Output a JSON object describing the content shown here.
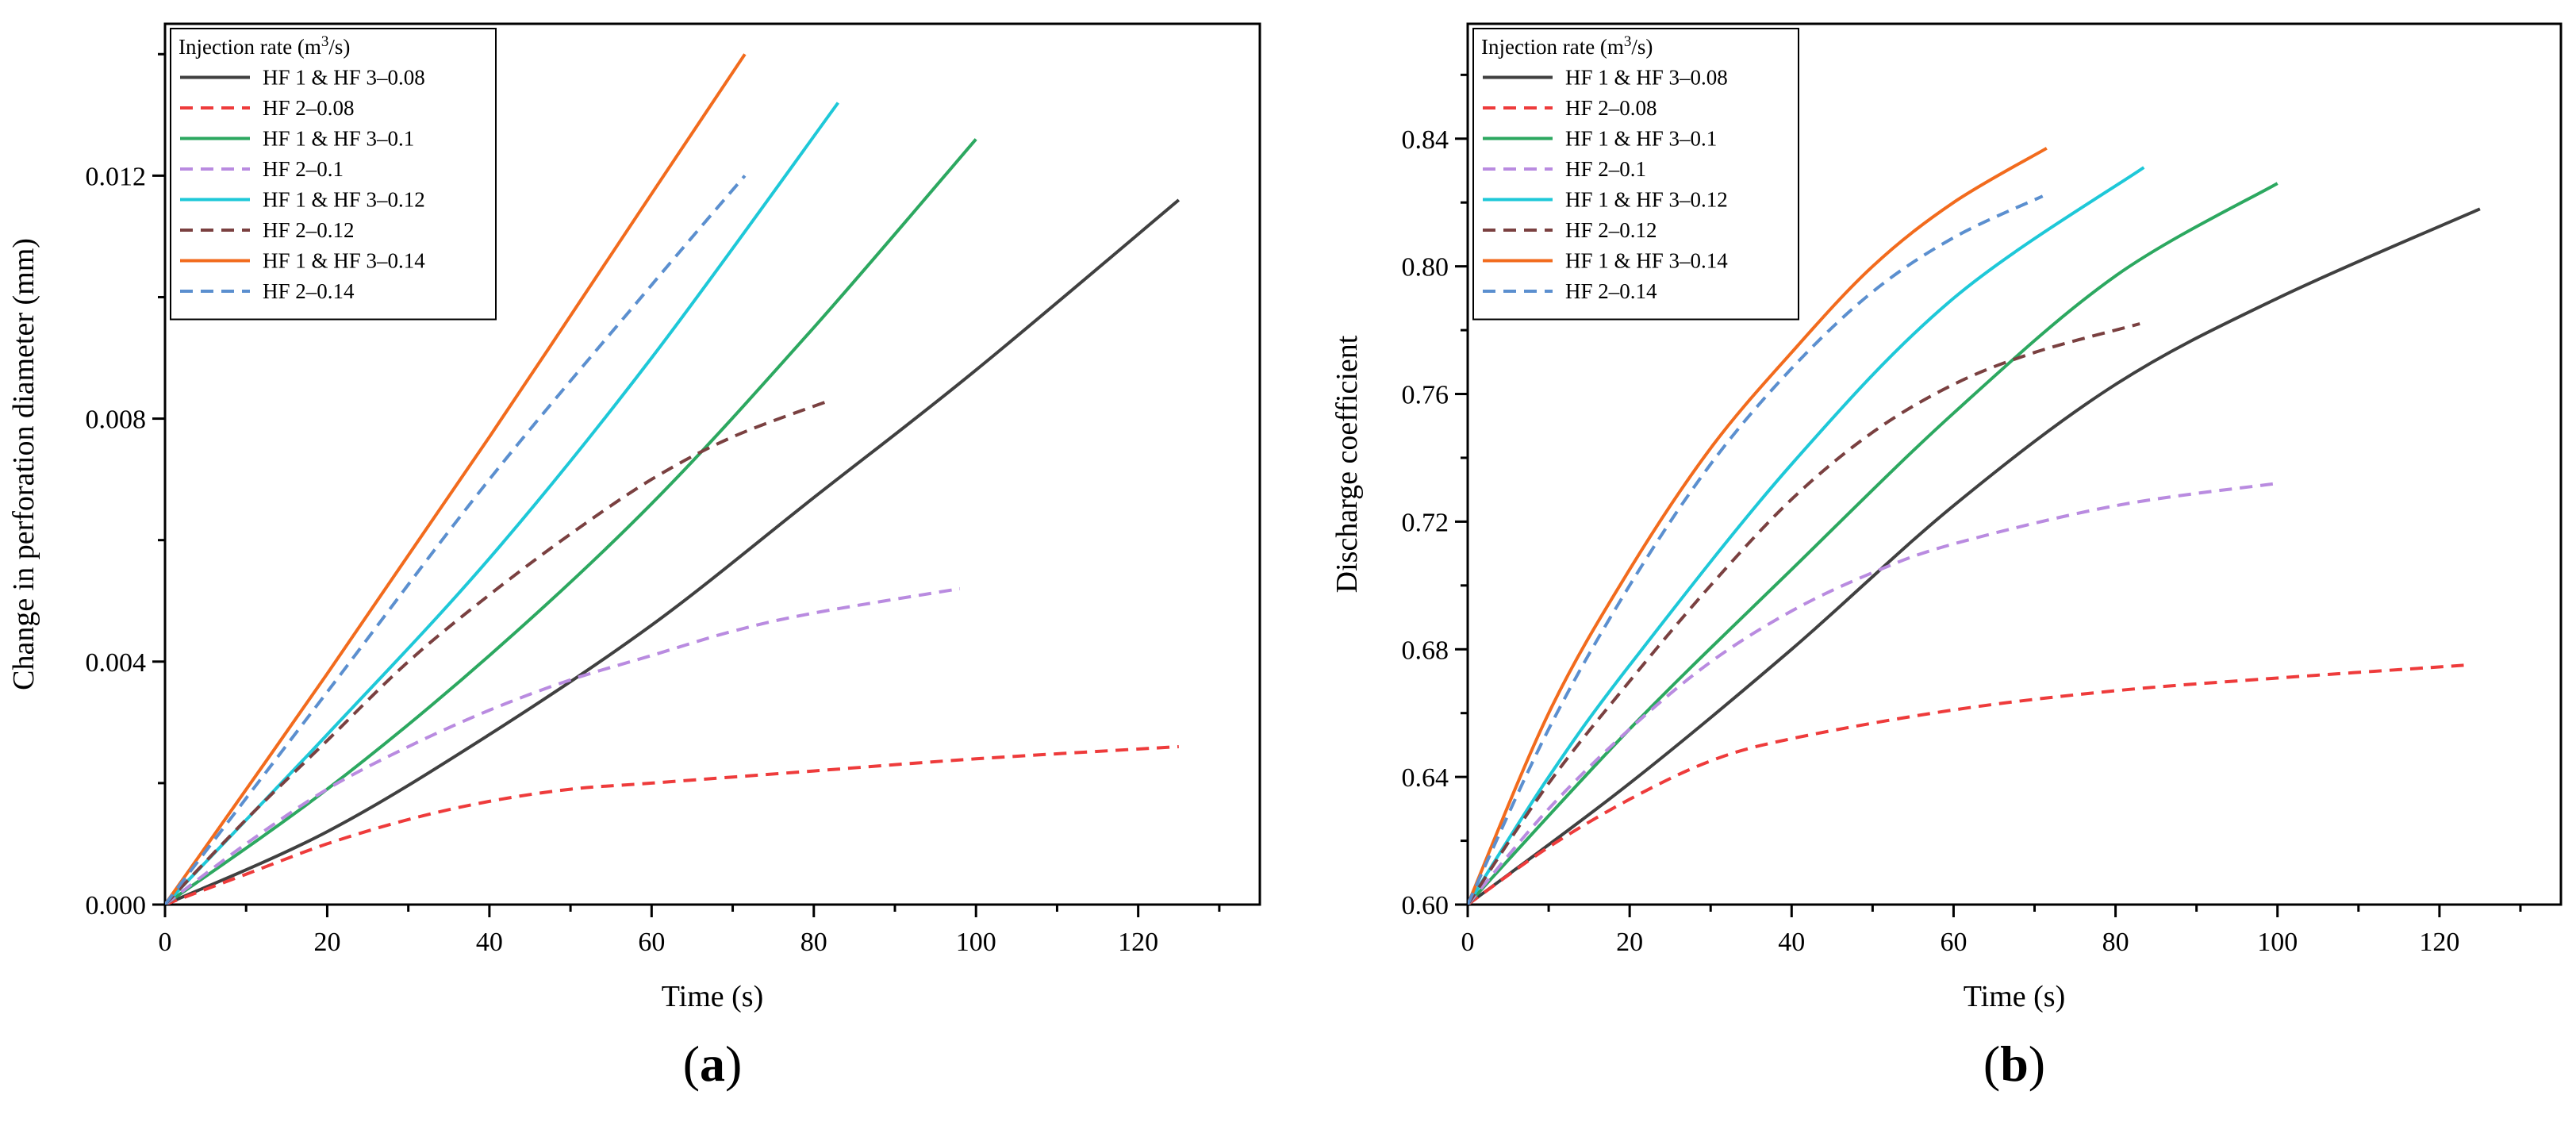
{
  "chart_data": [
    {
      "type": "line",
      "panel_label": "a",
      "xlabel": "Time (s)",
      "ylabel": "Change in perforation diameter (mm)",
      "xlim": [
        0,
        135
      ],
      "ylim": [
        0,
        0.0145
      ],
      "xticks": [
        0,
        20,
        40,
        60,
        80,
        100,
        120
      ],
      "xtick_labels": [
        "0",
        "20",
        "40",
        "60",
        "80",
        "100",
        "120"
      ],
      "yticks": [
        0,
        0.004,
        0.008,
        0.012
      ],
      "ytick_labels": [
        "0.000",
        "0.004",
        "0.008",
        "0.012"
      ],
      "legend_title": "Injection rate (m",
      "legend_title_sup": "3",
      "legend_title_end": "/s)",
      "legend_position": "top-left",
      "series": [
        {
          "name": "HF 1 & HF 3–0.08",
          "color": "#404040",
          "dash": "solid",
          "x": [
            0,
            20,
            40,
            60,
            80,
            100,
            125
          ],
          "y": [
            0,
            0.0012,
            0.0028,
            0.0046,
            0.0067,
            0.0088,
            0.0116
          ]
        },
        {
          "name": "HF 2–0.08",
          "color": "#ee3b3b",
          "dash": "dashed",
          "x": [
            0,
            10,
            20,
            30,
            40,
            50,
            60,
            80,
            100,
            125
          ],
          "y": [
            0,
            0.0005,
            0.001,
            0.0014,
            0.0017,
            0.0019,
            0.002,
            0.0022,
            0.0024,
            0.0026
          ]
        },
        {
          "name": "HF 1 & HF 3–0.1",
          "color": "#2ca860",
          "dash": "solid",
          "x": [
            0,
            20,
            40,
            60,
            80,
            100
          ],
          "y": [
            0,
            0.0019,
            0.0041,
            0.0066,
            0.0095,
            0.0126
          ]
        },
        {
          "name": "HF 2–0.1",
          "color": "#b98be0",
          "dash": "dashed",
          "x": [
            0,
            10,
            20,
            30,
            40,
            50,
            60,
            70,
            80,
            98
          ],
          "y": [
            0,
            0.001,
            0.0019,
            0.0026,
            0.0032,
            0.0037,
            0.0041,
            0.0045,
            0.0048,
            0.0052
          ]
        },
        {
          "name": "HF 1 & HF 3–0.12",
          "color": "#1ec8d8",
          "dash": "solid",
          "x": [
            0,
            20,
            40,
            60,
            83
          ],
          "y": [
            0,
            0.0028,
            0.0057,
            0.009,
            0.0132
          ]
        },
        {
          "name": "HF 2–0.12",
          "color": "#7a4040",
          "dash": "dashed",
          "x": [
            0,
            10,
            20,
            30,
            40,
            50,
            60,
            70,
            82
          ],
          "y": [
            0,
            0.0014,
            0.0027,
            0.004,
            0.0051,
            0.0061,
            0.007,
            0.0077,
            0.0083
          ]
        },
        {
          "name": "HF 1 & HF 3–0.14",
          "color": "#f26b1d",
          "dash": "solid",
          "x": [
            0,
            20,
            40,
            60,
            71.5
          ],
          "y": [
            0,
            0.0038,
            0.0077,
            0.0117,
            0.014
          ]
        },
        {
          "name": "HF 2–0.14",
          "color": "#5b8fcf",
          "dash": "dashed",
          "x": [
            0,
            20,
            40,
            60,
            71.5
          ],
          "y": [
            0,
            0.0035,
            0.007,
            0.0102,
            0.012
          ]
        }
      ]
    },
    {
      "type": "line",
      "panel_label": "b",
      "xlabel": "Time (s)",
      "ylabel": "Discharge coefficient",
      "xlim": [
        0,
        135
      ],
      "ylim": [
        0.6,
        0.876
      ],
      "xticks": [
        0,
        20,
        40,
        60,
        80,
        100,
        120
      ],
      "xtick_labels": [
        "0",
        "20",
        "40",
        "60",
        "80",
        "100",
        "120"
      ],
      "yticks": [
        0.6,
        0.64,
        0.68,
        0.72,
        0.76,
        0.8,
        0.84
      ],
      "ytick_labels": [
        "0.60",
        "0.64",
        "0.68",
        "0.72",
        "0.76",
        "0.80",
        "0.84"
      ],
      "legend_title": "Injection rate (m",
      "legend_title_sup": "3",
      "legend_title_end": "/s)",
      "legend_position": "top-left",
      "series": [
        {
          "name": "HF 1 & HF 3–0.08",
          "color": "#404040",
          "dash": "solid",
          "x": [
            0,
            20,
            40,
            60,
            80,
            100,
            125
          ],
          "y": [
            0.6,
            0.638,
            0.68,
            0.725,
            0.763,
            0.79,
            0.818
          ]
        },
        {
          "name": "HF 2–0.08",
          "color": "#ee3b3b",
          "dash": "dashed",
          "x": [
            0,
            10,
            20,
            30,
            40,
            60,
            80,
            100,
            123
          ],
          "y": [
            0.6,
            0.618,
            0.633,
            0.645,
            0.652,
            0.661,
            0.667,
            0.671,
            0.675
          ]
        },
        {
          "name": "HF 1 & HF 3–0.1",
          "color": "#2ca860",
          "dash": "solid",
          "x": [
            0,
            20,
            40,
            60,
            80,
            100
          ],
          "y": [
            0.6,
            0.655,
            0.705,
            0.754,
            0.797,
            0.826
          ]
        },
        {
          "name": "HF 2–0.1",
          "color": "#b98be0",
          "dash": "dashed",
          "x": [
            0,
            10,
            20,
            30,
            40,
            50,
            60,
            80,
            100
          ],
          "y": [
            0.6,
            0.63,
            0.655,
            0.676,
            0.692,
            0.704,
            0.713,
            0.725,
            0.732
          ]
        },
        {
          "name": "HF 1 & HF 3–0.12",
          "color": "#1ec8d8",
          "dash": "solid",
          "x": [
            0,
            10,
            20,
            40,
            60,
            83.5
          ],
          "y": [
            0.6,
            0.64,
            0.675,
            0.738,
            0.79,
            0.831
          ]
        },
        {
          "name": "HF 2–0.12",
          "color": "#7a4040",
          "dash": "dashed",
          "x": [
            0,
            10,
            20,
            30,
            40,
            50,
            60,
            70,
            83
          ],
          "y": [
            0.6,
            0.638,
            0.67,
            0.7,
            0.727,
            0.748,
            0.763,
            0.773,
            0.782
          ]
        },
        {
          "name": "HF 1 & HF 3–0.14",
          "color": "#f26b1d",
          "dash": "solid",
          "x": [
            0,
            10,
            20,
            30,
            40,
            50,
            60,
            71.5
          ],
          "y": [
            0.6,
            0.66,
            0.705,
            0.743,
            0.773,
            0.8,
            0.82,
            0.837
          ]
        },
        {
          "name": "HF 2–0.14",
          "color": "#5b8fcf",
          "dash": "dashed",
          "x": [
            0,
            10,
            20,
            30,
            40,
            50,
            60,
            71
          ],
          "y": [
            0.6,
            0.655,
            0.7,
            0.738,
            0.768,
            0.792,
            0.809,
            0.822
          ]
        }
      ]
    }
  ]
}
